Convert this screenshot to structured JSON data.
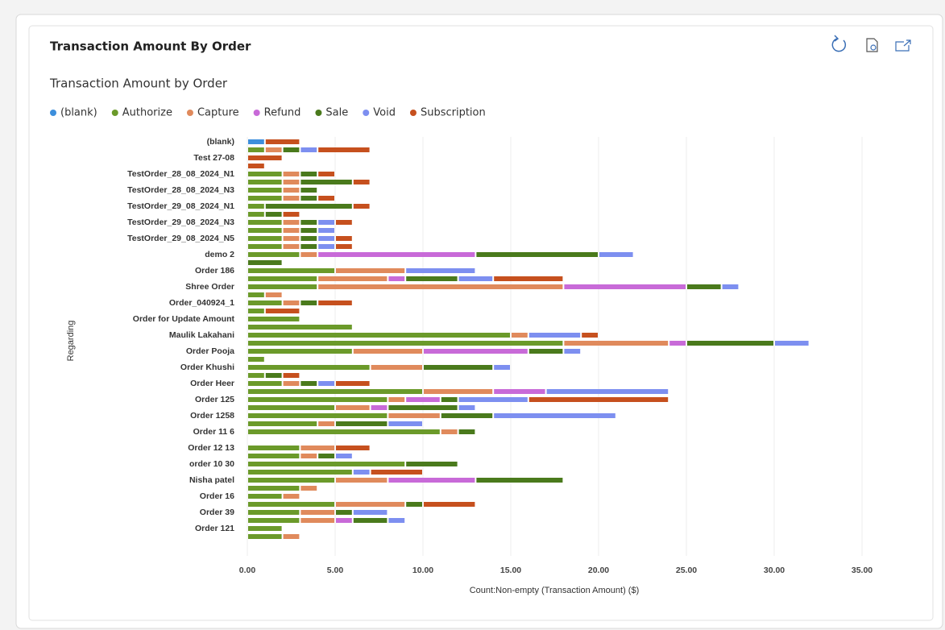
{
  "header": {
    "title": "Transaction Amount By Order"
  },
  "chart_data": {
    "type": "bar",
    "orientation": "horizontal",
    "stacked": true,
    "title": "Transaction Amount by Order",
    "xlabel": "Count:Non-empty (Transaction Amount) ($)",
    "ylabel": "Regarding",
    "grid": true,
    "xlim": [
      0,
      35
    ],
    "xticks": [
      {
        "value": 0,
        "label": "0.00"
      },
      {
        "value": 5,
        "label": "5.00"
      },
      {
        "value": 10,
        "label": "10.00"
      },
      {
        "value": 15,
        "label": "15.00"
      },
      {
        "value": 20,
        "label": "20.00"
      },
      {
        "value": 25,
        "label": "25.00"
      },
      {
        "value": 30,
        "label": "30.00"
      },
      {
        "value": 35,
        "label": "35.00"
      }
    ],
    "categories": [
      "(blank)",
      null,
      "Test 27-08",
      null,
      "TestOrder_28_08_2024_N1",
      null,
      "TestOrder_28_08_2024_N3",
      null,
      "TestOrder_29_08_2024_N1",
      null,
      "TestOrder_29_08_2024_N3",
      null,
      "TestOrder_29_08_2024_N5",
      null,
      "demo 2",
      null,
      "Order 186",
      null,
      "Shree Order",
      null,
      "Order_040924_1",
      null,
      "Order for Update Amount",
      null,
      "Maulik Lakahani",
      null,
      "Order Pooja",
      null,
      "Order Khushi",
      null,
      "Order Heer",
      null,
      "Order 125",
      null,
      "Order 1258",
      null,
      "Order 11 6",
      null,
      "Order 12 13",
      null,
      "order 10 30",
      null,
      "Nisha patel",
      null,
      "Order 16",
      null,
      "Order 39",
      null,
      "Order 121",
      null
    ],
    "series": [
      {
        "name": "(blank)",
        "color": "#3d8fdc",
        "values": [
          1,
          null,
          null,
          null,
          null,
          null,
          null,
          null,
          null,
          null,
          null,
          null,
          null,
          null,
          null,
          null,
          null,
          null,
          null,
          null,
          null,
          null,
          null,
          null,
          null,
          null,
          null,
          null,
          null,
          null,
          null,
          null,
          null,
          null,
          null,
          null,
          null,
          null,
          null,
          null,
          null,
          null,
          null,
          null,
          null,
          null,
          null,
          null,
          null,
          null
        ]
      },
      {
        "name": "Authorize",
        "color": "#6b9a2a",
        "values": [
          null,
          1,
          null,
          null,
          2,
          2,
          2,
          2,
          1,
          1,
          2,
          2,
          2,
          2,
          3,
          null,
          5,
          4,
          4,
          1,
          2,
          1,
          3,
          6,
          15,
          18,
          6,
          1,
          7,
          1,
          2,
          10,
          8,
          5,
          8,
          4,
          11,
          null,
          3,
          3,
          9,
          6,
          5,
          3,
          2,
          5,
          3,
          3,
          2,
          2
        ]
      },
      {
        "name": "Capture",
        "color": "#e08a5c",
        "values": [
          null,
          1,
          null,
          null,
          1,
          1,
          1,
          1,
          null,
          null,
          1,
          1,
          1,
          1,
          1,
          null,
          4,
          4,
          14,
          1,
          1,
          null,
          null,
          null,
          1,
          6,
          4,
          null,
          3,
          null,
          1,
          4,
          1,
          2,
          3,
          1,
          1,
          null,
          2,
          1,
          null,
          null,
          3,
          1,
          1,
          4,
          2,
          2,
          null,
          1
        ]
      },
      {
        "name": "Refund",
        "color": "#c86ad8",
        "values": [
          null,
          null,
          null,
          null,
          null,
          null,
          null,
          null,
          null,
          null,
          null,
          null,
          null,
          null,
          9,
          null,
          null,
          1,
          7,
          null,
          null,
          null,
          null,
          null,
          null,
          1,
          6,
          null,
          null,
          null,
          null,
          3,
          2,
          1,
          null,
          null,
          null,
          null,
          null,
          null,
          null,
          null,
          5,
          null,
          null,
          null,
          null,
          1,
          null,
          null
        ]
      },
      {
        "name": "Sale",
        "color": "#4a7a1c",
        "values": [
          null,
          1,
          null,
          null,
          1,
          3,
          1,
          1,
          5,
          1,
          1,
          1,
          1,
          1,
          7,
          2,
          null,
          3,
          2,
          null,
          1,
          null,
          null,
          null,
          null,
          5,
          2,
          null,
          4,
          1,
          1,
          null,
          1,
          4,
          3,
          3,
          1,
          null,
          null,
          1,
          3,
          null,
          5,
          null,
          null,
          1,
          1,
          2,
          null,
          null
        ]
      },
      {
        "name": "Void",
        "color": "#7d8ff0",
        "values": [
          null,
          1,
          null,
          null,
          null,
          null,
          null,
          null,
          null,
          null,
          1,
          1,
          1,
          1,
          2,
          null,
          4,
          2,
          1,
          null,
          null,
          null,
          null,
          null,
          3,
          2,
          1,
          null,
          1,
          null,
          1,
          7,
          4,
          1,
          7,
          2,
          null,
          null,
          null,
          1,
          null,
          1,
          null,
          null,
          null,
          null,
          2,
          1,
          null,
          null
        ]
      },
      {
        "name": "Subscription",
        "color": "#c6501e",
        "values": [
          2,
          3,
          2,
          1,
          1,
          1,
          null,
          1,
          1,
          1,
          1,
          null,
          1,
          1,
          null,
          null,
          null,
          4,
          null,
          null,
          2,
          2,
          null,
          null,
          1,
          null,
          null,
          null,
          null,
          1,
          2,
          null,
          8,
          null,
          null,
          null,
          null,
          null,
          2,
          null,
          null,
          3,
          null,
          null,
          null,
          3,
          null,
          null,
          null,
          null
        ]
      }
    ]
  }
}
